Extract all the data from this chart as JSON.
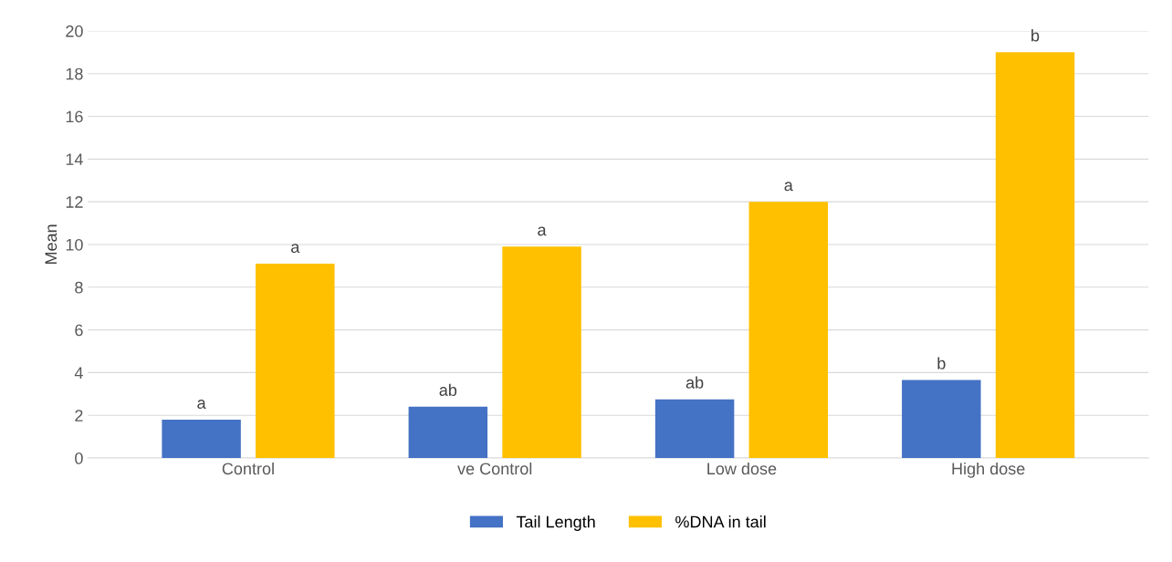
{
  "chart_data": {
    "type": "bar",
    "ylabel": "Mean",
    "categories": [
      "Control",
      "ve Control",
      "Low dose",
      "High dose"
    ],
    "series": [
      {
        "name": "Tail Length",
        "color": "#4472c4",
        "values": [
          1.8,
          2.4,
          2.75,
          3.65
        ],
        "value_labels": [
          "a",
          "ab",
          "ab",
          "b"
        ]
      },
      {
        "name": "%DNA in tail",
        "color": "#ffc000",
        "values": [
          9.1,
          9.9,
          12.0,
          19.0
        ],
        "value_labels": [
          "a",
          "a",
          "a",
          "b"
        ]
      }
    ],
    "ylim": [
      0,
      20
    ],
    "yticks": [
      0,
      2,
      4,
      6,
      8,
      10,
      12,
      14,
      16,
      18,
      20
    ],
    "grid": "y",
    "legend": "bottom"
  }
}
